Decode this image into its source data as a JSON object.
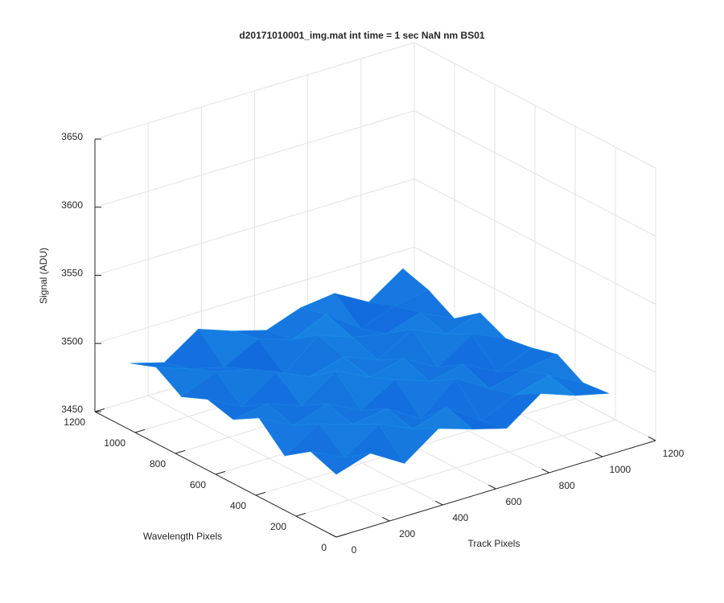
{
  "chart_data": {
    "type": "surface",
    "title": "d20171010001_img.mat int time = 1 sec  NaN nm BS01",
    "x_label": "Track Pixels",
    "y_label": "Wavelength Pixels",
    "z_label": "Signal (ADU)",
    "xlim": [
      0,
      1200
    ],
    "xticks": [
      0,
      200,
      400,
      600,
      800,
      1000,
      1200
    ],
    "ylim": [
      0,
      1200
    ],
    "yticks": [
      0,
      200,
      400,
      600,
      800,
      1000,
      1200
    ],
    "zlim": [
      3450,
      3650
    ],
    "zticks": [
      3450,
      3500,
      3550,
      3600,
      3650
    ],
    "grid": true,
    "colors": [
      "#0a4bd6",
      "#22a6ea"
    ],
    "x": [
      0,
      128,
      256,
      384,
      512,
      640,
      768,
      896,
      1024
    ],
    "y": [
      0,
      128,
      256,
      384,
      512,
      640,
      768,
      896,
      1024
    ],
    "z": [
      [
        3496,
        3504,
        3489,
        3507,
        3499,
        3492,
        3510,
        3501,
        3495
      ],
      [
        3503,
        3491,
        3508,
        3497,
        3505,
        3488,
        3499,
        3506,
        3493
      ],
      [
        3490,
        3506,
        3498,
        3502,
        3487,
        3509,
        3494,
        3500,
        3504
      ],
      [
        3508,
        3495,
        3503,
        3491,
        3506,
        3497,
        3502,
        3489,
        3499
      ],
      [
        3497,
        3501,
        3492,
        3510,
        3498,
        3504,
        3490,
        3507,
        3496
      ],
      [
        3502,
        3489,
        3507,
        3496,
        3503,
        3493,
        3508,
        3497,
        3505
      ],
      [
        3494,
        3505,
        3499,
        3488,
        3509,
        3500,
        3495,
        3503,
        3491
      ],
      [
        3506,
        3497,
        3491,
        3504,
        3496,
        3507,
        3489,
        3498,
        3502
      ],
      [
        3499,
        3492,
        3509,
        3500,
        3493,
        3502,
        3505,
        3491,
        3508
      ]
    ]
  }
}
